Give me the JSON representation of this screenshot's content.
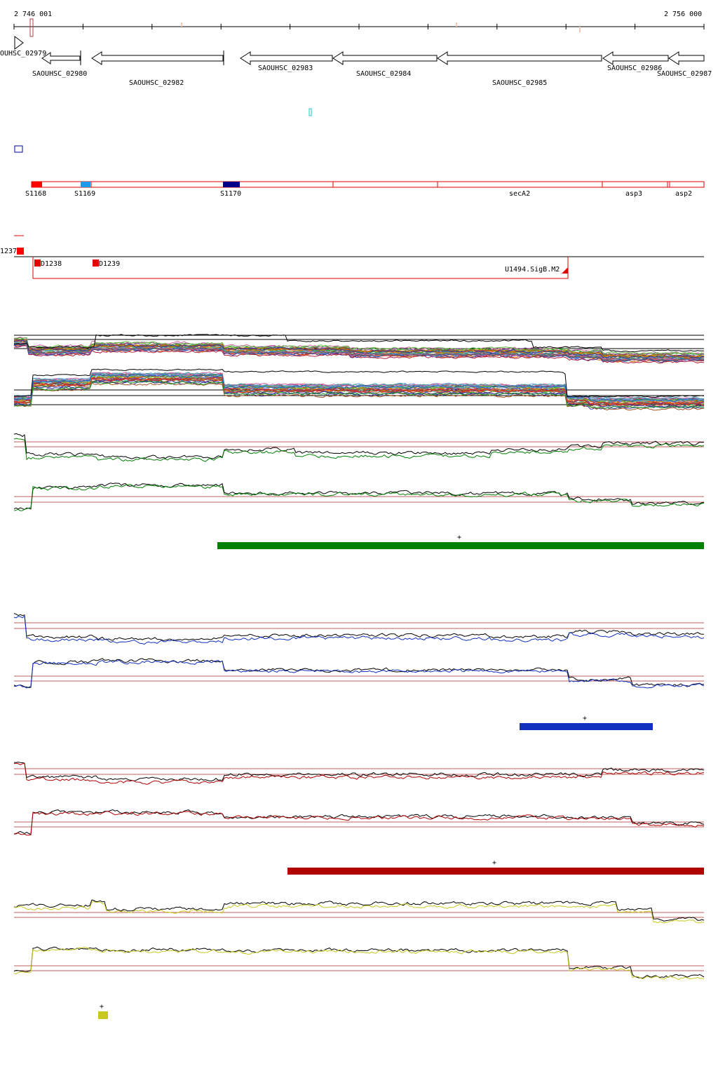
{
  "ruler": {
    "start_label": "2 746 001",
    "end_label": "2 756 000"
  },
  "genes": [
    {
      "id": "SAOUHSC_02979",
      "label": "OUHSC_02979"
    },
    {
      "id": "SAOUHSC_02980",
      "label": "SAOUHSC_02980"
    },
    {
      "id": "SAOUHSC_02982",
      "label": "SAOUHSC_02982"
    },
    {
      "id": "SAOUHSC_02983",
      "label": "SAOUHSC_02983"
    },
    {
      "id": "SAOUHSC_02984",
      "label": "SAOUHSC_02984"
    },
    {
      "id": "SAOUHSC_02985",
      "label": "SAOUHSC_02985"
    },
    {
      "id": "SAOUHSC_02986",
      "label": "SAOUHSC_02986"
    },
    {
      "id": "SAOUHSC_02987",
      "label": "SAOUHSC_02987"
    }
  ],
  "segments": {
    "labels": [
      "S1168",
      "S1169",
      "S1170",
      "secA2",
      "asp3",
      "asp2"
    ],
    "colors": {
      "S1168": "#ff0000",
      "S1169": "#1e9be8",
      "S1170": "#00008b"
    }
  },
  "transcription_units": {
    "labels": [
      "1237",
      "D1238",
      "D1239",
      "U1494.SigB.M2"
    ]
  },
  "condition_tracks": [
    {
      "id": "green",
      "color": "#008000",
      "bar_marker": "+"
    },
    {
      "id": "blue",
      "color": "#1030c0",
      "bar_marker": "+"
    },
    {
      "id": "red",
      "color": "#b00000",
      "bar_marker": "+"
    },
    {
      "id": "yellow",
      "color": "#c8c820",
      "bar_marker": "+"
    }
  ]
}
